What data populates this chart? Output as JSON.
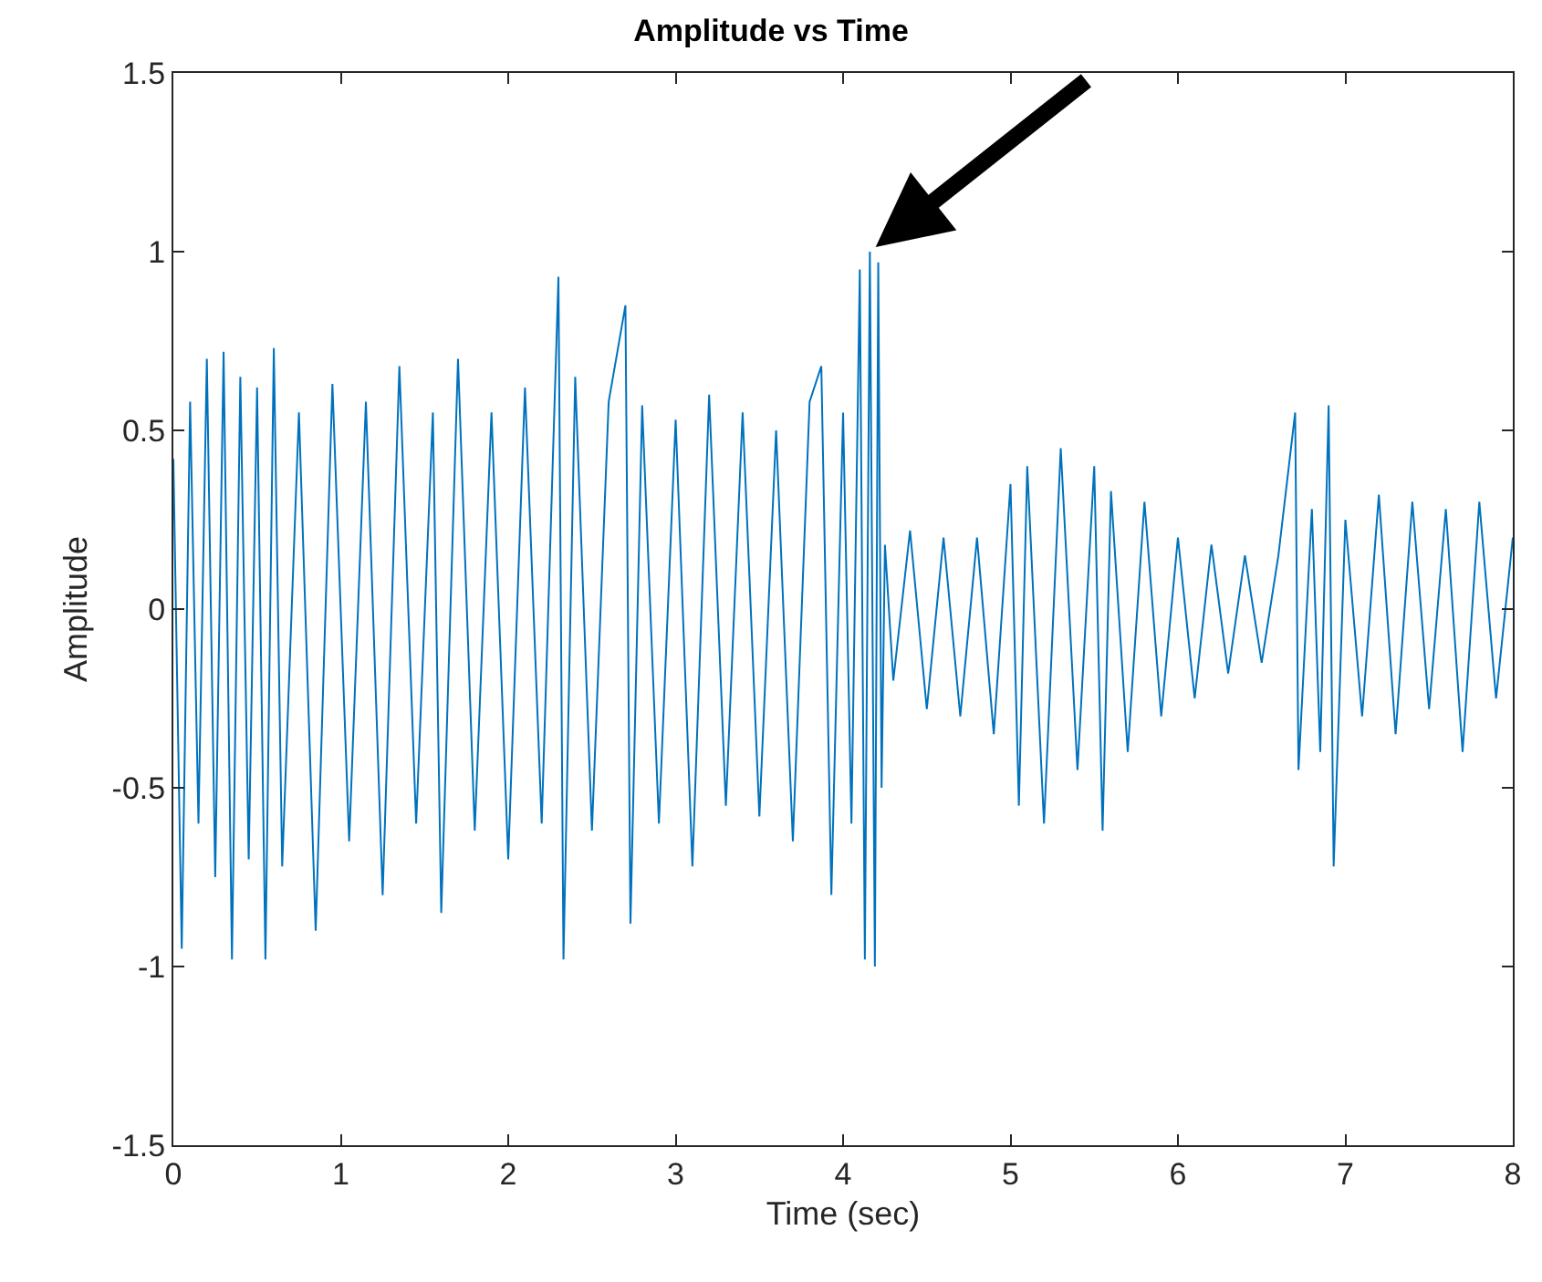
{
  "chart_data": {
    "type": "line",
    "title": "Amplitude vs Time",
    "xlabel": "Time (sec)",
    "ylabel": "Amplitude",
    "x": [
      0.0,
      0.05,
      0.1,
      0.15,
      0.2,
      0.25,
      0.3,
      0.35,
      0.4,
      0.45,
      0.5,
      0.55,
      0.6,
      0.65,
      0.75,
      0.85,
      0.95,
      1.05,
      1.15,
      1.25,
      1.35,
      1.45,
      1.55,
      1.6,
      1.7,
      1.8,
      1.9,
      2.0,
      2.1,
      2.2,
      2.3,
      2.33,
      2.4,
      2.5,
      2.6,
      2.7,
      2.73,
      2.8,
      2.9,
      3.0,
      3.1,
      3.2,
      3.3,
      3.4,
      3.5,
      3.6,
      3.7,
      3.8,
      3.87,
      3.93,
      4.0,
      4.05,
      4.1,
      4.13,
      4.16,
      4.19,
      4.21,
      4.23,
      4.25,
      4.3,
      4.4,
      4.5,
      4.6,
      4.7,
      4.8,
      4.9,
      5.0,
      5.05,
      5.1,
      5.2,
      5.3,
      5.4,
      5.5,
      5.55,
      5.6,
      5.7,
      5.8,
      5.9,
      6.0,
      6.1,
      6.2,
      6.3,
      6.4,
      6.5,
      6.6,
      6.7,
      6.72,
      6.8,
      6.85,
      6.9,
      6.93,
      7.0,
      7.1,
      7.2,
      7.3,
      7.4,
      7.5,
      7.6,
      7.7,
      7.8,
      7.9,
      8.0
    ],
    "series": [
      {
        "color": "#0072bd",
        "values": [
          0.42,
          -0.95,
          0.58,
          -0.6,
          0.7,
          -0.75,
          0.72,
          -0.98,
          0.65,
          -0.7,
          0.62,
          -0.98,
          0.73,
          -0.72,
          0.55,
          -0.9,
          0.63,
          -0.65,
          0.58,
          -0.8,
          0.68,
          -0.6,
          0.55,
          -0.85,
          0.7,
          -0.62,
          0.55,
          -0.7,
          0.62,
          -0.6,
          0.93,
          -0.98,
          0.65,
          -0.62,
          0.58,
          0.85,
          -0.88,
          0.57,
          -0.6,
          0.53,
          -0.72,
          0.6,
          -0.55,
          0.55,
          -0.58,
          0.5,
          -0.65,
          0.58,
          0.68,
          -0.8,
          0.55,
          -0.6,
          0.95,
          -0.98,
          1.0,
          -1.0,
          0.97,
          -0.5,
          0.18,
          -0.2,
          0.22,
          -0.28,
          0.2,
          -0.3,
          0.2,
          -0.35,
          0.35,
          -0.55,
          0.4,
          -0.6,
          0.45,
          -0.45,
          0.4,
          -0.62,
          0.33,
          -0.4,
          0.3,
          -0.3,
          0.2,
          -0.25,
          0.18,
          -0.18,
          0.15,
          -0.15,
          0.15,
          0.55,
          -0.45,
          0.28,
          -0.4,
          0.57,
          -0.72,
          0.25,
          -0.3,
          0.32,
          -0.35,
          0.3,
          -0.28,
          0.28,
          -0.4,
          0.3,
          -0.25,
          0.2
        ]
      }
    ],
    "xlim": [
      0,
      8
    ],
    "xticks": [
      0,
      1,
      2,
      3,
      4,
      5,
      6,
      7,
      8
    ],
    "ylim": [
      -1.5,
      1.5
    ],
    "yticks": [
      -1.5,
      -1,
      -0.5,
      0,
      0.5,
      1,
      1.5
    ],
    "marker": "none",
    "line_style": "solid"
  }
}
